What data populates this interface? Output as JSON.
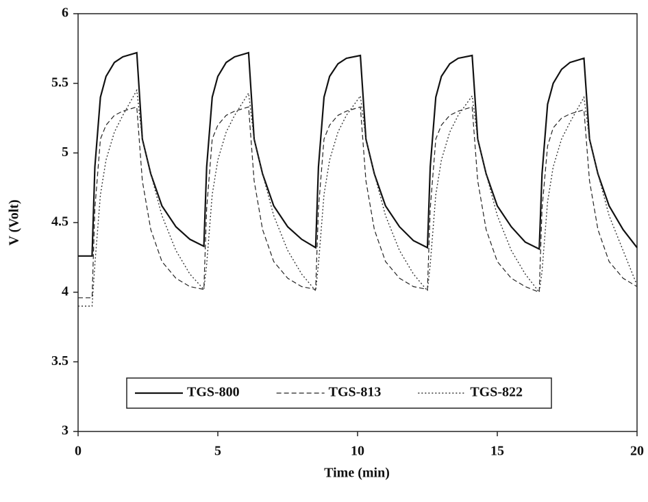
{
  "chart_data": {
    "type": "line",
    "x_label": "Time (min)",
    "y_label": "V (Volt)",
    "x": [
      0,
      0.5,
      0.6,
      0.8,
      1.0,
      1.3,
      1.6,
      2.1,
      2.3,
      2.6,
      3.0,
      3.5,
      4.0,
      4.5,
      4.6,
      4.8,
      5.0,
      5.3,
      5.6,
      6.1,
      6.3,
      6.6,
      7.0,
      7.5,
      8.0,
      8.5,
      8.6,
      8.8,
      9.0,
      9.3,
      9.6,
      10.1,
      10.3,
      10.6,
      11.0,
      11.5,
      12.0,
      12.5,
      12.6,
      12.8,
      13.0,
      13.3,
      13.6,
      14.1,
      14.3,
      14.6,
      15.0,
      15.5,
      16.0,
      16.5,
      16.6,
      16.8,
      17.0,
      17.3,
      17.6,
      18.1,
      18.3,
      18.6,
      19.0,
      19.5,
      20.0
    ],
    "series": [
      {
        "name": "TGS-800",
        "color": "#111111",
        "style": "solid",
        "values": [
          4.26,
          4.26,
          4.9,
          5.4,
          5.55,
          5.65,
          5.69,
          5.72,
          5.1,
          4.85,
          4.62,
          4.47,
          4.38,
          4.33,
          4.9,
          5.4,
          5.55,
          5.65,
          5.69,
          5.72,
          5.1,
          4.85,
          4.62,
          4.47,
          4.38,
          4.32,
          4.9,
          5.4,
          5.55,
          5.64,
          5.68,
          5.7,
          5.1,
          4.85,
          4.62,
          4.47,
          4.37,
          4.32,
          4.9,
          5.4,
          5.55,
          5.64,
          5.68,
          5.7,
          5.1,
          4.85,
          4.62,
          4.47,
          4.36,
          4.31,
          4.85,
          5.35,
          5.5,
          5.6,
          5.65,
          5.68,
          5.1,
          4.85,
          4.62,
          4.45,
          4.32
        ]
      },
      {
        "name": "TGS-813",
        "color": "#222222",
        "style": "dashed",
        "values": [
          3.96,
          3.96,
          4.6,
          5.1,
          5.2,
          5.27,
          5.3,
          5.33,
          4.8,
          4.45,
          4.22,
          4.1,
          4.04,
          4.02,
          4.6,
          5.1,
          5.2,
          5.27,
          5.3,
          5.33,
          4.8,
          4.45,
          4.22,
          4.1,
          4.04,
          4.02,
          4.6,
          5.1,
          5.2,
          5.27,
          5.3,
          5.33,
          4.8,
          4.45,
          4.22,
          4.1,
          4.04,
          4.02,
          4.6,
          5.1,
          5.2,
          5.27,
          5.3,
          5.33,
          4.8,
          4.45,
          4.22,
          4.1,
          4.04,
          4.0,
          4.6,
          5.05,
          5.18,
          5.25,
          5.28,
          5.31,
          4.8,
          4.45,
          4.22,
          4.1,
          4.04
        ]
      },
      {
        "name": "TGS-822",
        "color": "#333333",
        "style": "dotted",
        "values": [
          3.9,
          3.9,
          4.2,
          4.7,
          4.95,
          5.15,
          5.27,
          5.45,
          5.1,
          4.85,
          4.55,
          4.3,
          4.13,
          4.02,
          4.2,
          4.7,
          4.95,
          5.15,
          5.27,
          5.43,
          5.1,
          4.85,
          4.55,
          4.3,
          4.13,
          4.01,
          4.2,
          4.7,
          4.95,
          5.15,
          5.27,
          5.41,
          5.1,
          4.85,
          4.55,
          4.3,
          4.13,
          4.01,
          4.2,
          4.7,
          4.95,
          5.15,
          5.27,
          5.41,
          5.1,
          4.85,
          4.55,
          4.3,
          4.13,
          4.0,
          4.15,
          4.65,
          4.9,
          5.1,
          5.22,
          5.4,
          5.1,
          4.85,
          4.55,
          4.3,
          4.05
        ]
      }
    ],
    "xlim": [
      0,
      20
    ],
    "ylim": [
      3,
      6
    ],
    "xticks": [
      0,
      5,
      10,
      15,
      20
    ],
    "yticks": [
      3,
      3.5,
      4,
      4.5,
      5,
      5.5,
      6
    ]
  }
}
